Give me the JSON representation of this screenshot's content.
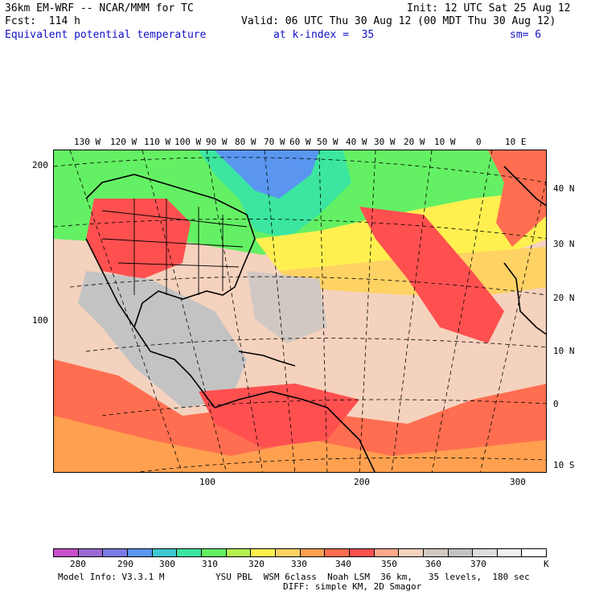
{
  "header": {
    "model_title": "36km EM-WRF -- NCAR/MMM for TC",
    "init": "Init: 12 UTC Sat 25 Aug 12",
    "forecast": "Fcst:  114 h",
    "valid": "Valid: 06 UTC Thu 30 Aug 12 (00 MDT Thu 30 Aug 12)",
    "field": "Equivalent potential temperature",
    "level": "at k-index =  35",
    "smoothing": "sm= 6"
  },
  "map": {
    "lon_labels": [
      "130 W",
      "120 W",
      "110 W",
      "100 W",
      "90 W",
      "80 W",
      "70 W",
      "60 W",
      "50 W",
      "40 W",
      "30 W",
      "20 W",
      "10 W",
      "0",
      "10 E"
    ],
    "lat_labels": [
      "40 N",
      "30 N",
      "20 N",
      "10 N",
      "0",
      "10 S"
    ],
    "grid_y_labels": [
      "200",
      "100"
    ],
    "grid_x_labels": [
      "100",
      "200",
      "300"
    ]
  },
  "colorbar": {
    "values": [
      "280",
      "290",
      "300",
      "310",
      "320",
      "330",
      "340",
      "350",
      "360",
      "370"
    ],
    "unit": "K",
    "colors": [
      "#c850c8",
      "#9a6ad2",
      "#7b7be6",
      "#5a96f0",
      "#3cc8d2",
      "#3ce6a0",
      "#64f064",
      "#b4f050",
      "#fff050",
      "#ffd264",
      "#ffa050",
      "#ff6e50",
      "#ff5050",
      "#ffa88c",
      "#f5d2be",
      "#d2c8c3",
      "#c3c3c3",
      "#dcdcdc",
      "#f0f0f0",
      "#ffffff"
    ]
  },
  "footer": {
    "model_info": "Model Info: V3.3.1 M",
    "physics": "YSU PBL  WSM 6class  Noah LSM  36 km,   35 levels,  180 sec",
    "diffusion": "DIFF: simple KM, 2D Smagor"
  }
}
